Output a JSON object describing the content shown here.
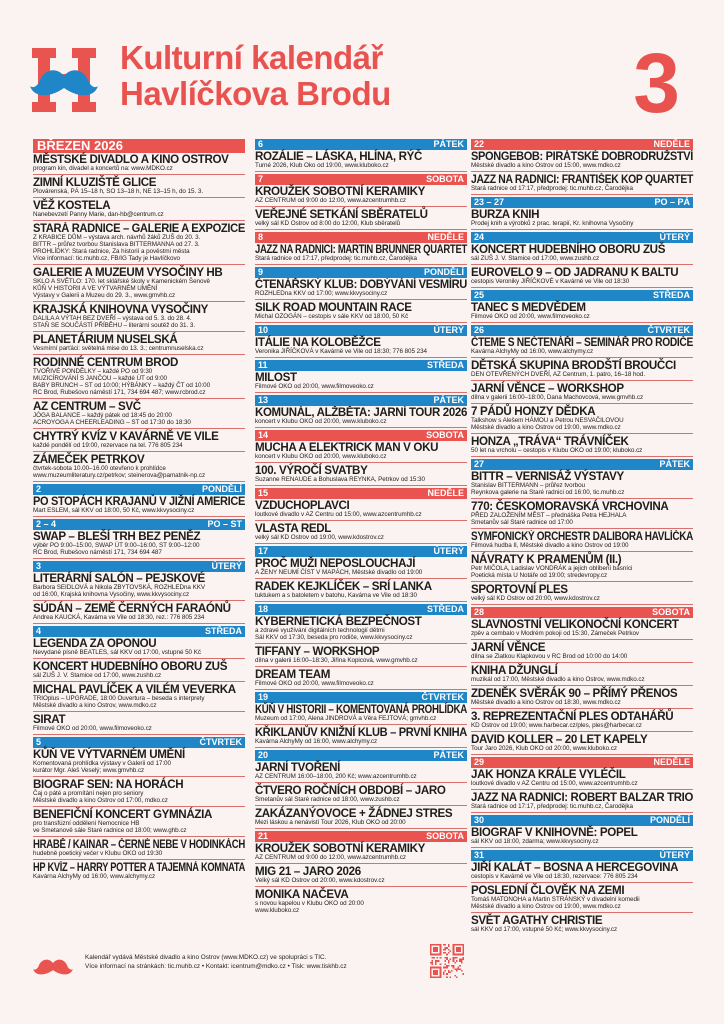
{
  "header": {
    "title_line1": "Kulturní kalendář",
    "title_line2": "Havlíčkova Brodu",
    "issue_number": "3",
    "logo_letter": "H"
  },
  "colors": {
    "red": "#ea5450",
    "blue": "#1f86c8"
  },
  "columns": [
    [
      {
        "type": "month",
        "label": "BŘEZEN 2026"
      },
      {
        "type": "event",
        "title": "MĚSTSKÉ DIVADLO A KINO OSTROV",
        "lines": [
          "program kin, divadel a koncertů na: www.MDKO.cz"
        ]
      },
      {
        "type": "event",
        "title": "ZIMNÍ KLUZIŠTĚ GLICE",
        "lines": [
          "Plovárenská, PÁ 15–18 h, SO 13–18 h, NE 13–15 h, do 15. 3."
        ]
      },
      {
        "type": "event",
        "title": "VĚŽ KOSTELA",
        "lines": [
          "Nanebevzetí Panny Marie, dan-hb@centrum.cz"
        ]
      },
      {
        "type": "event",
        "title": "STARÁ RADNICE – GALERIE A EXPOZICE",
        "lines": [
          "Z KRABICE DŮM – výstava arch. návrhů žáků ZUŠ do 20. 3.",
          "BITTR – průřez tvorbou Stanislava BITTERMANNA od 27. 3.",
          "PROHLÍDKY: Stará radnice, Za historií a pověstmi města",
          "Více informací: tic.muhb.cz, FB/IG Tady je Havlíčkovo"
        ]
      },
      {
        "type": "event",
        "title": "GALERIE A MUZEUM VYSOČINY HB",
        "lines": [
          "SKLO A SVĚTLO: 170. let sklářské školy v Kamenickém Šenově",
          "KŮŇ V HISTORII A VE VÝTVARNÉM UMĚNÍ",
          "Výstavy v Galerii a Muzeu do 29. 3., www.gmvhb.cz"
        ]
      },
      {
        "type": "event",
        "title": "KRAJSKÁ KNIHOVNA VYSOČINY",
        "lines": [
          "DALILA A VÝTAH BEZ DVEŘÍ – výstava od 5. 3. do 28. 4.",
          "STAŇ SE SOUČÁSTÍ PŘÍBĚHU – literární soutěž do 31. 3."
        ]
      },
      {
        "type": "event",
        "title": "PLANETÁRIUM NUSELSKÁ",
        "lines": [
          "Vesmírní parťáci: světelná mise do 13. 3.; centrumnuselska.cz"
        ]
      },
      {
        "type": "event",
        "title": "RODINNÉ CENTRUM BROD",
        "lines": [
          "TVOŘIVÉ PONDĚLKY – každé PO od 9:30",
          "MUZICÍROVÁNÍ S JANČOU – každé ÚT od 9:00",
          "BABY BRUNCH – ST od 10:00; HÝBÁNKY – každý ČT od 10:00",
          "RC Brod, Rubešovo náměstí 171, 734 694 487; www.rcbrod.cz"
        ]
      },
      {
        "type": "event",
        "title": "AZ CENTRUM – SVČ",
        "lines": [
          "JÓGA BALANCE – každý pátek od 18:45 do 20:00",
          "ACROYOGA A CHEERLEADING – ST od 17:30 do 18:30"
        ]
      },
      {
        "type": "event",
        "title": "CHYTRÝ KVÍZ V KAVÁRNĚ VE VILE",
        "lines": [
          "každé pondělí od 19:00, rezervace na tel. 776 805 234"
        ]
      },
      {
        "type": "event",
        "title": "ZÁMEČEK PETRKOV",
        "lines": [
          "čtvrtek-sobota 10.00–16.00 otevřeno k prohlídce",
          "www.muzeumliteratury.cz/petrkov; steinerova@pamatnik-np.cz"
        ]
      },
      {
        "type": "day",
        "num": "2",
        "name": "PONDĚLÍ",
        "color": "blue"
      },
      {
        "type": "event",
        "title": "PO STOPÁCH KRAJANŮ V JIŽNÍ AMERICE",
        "lines": [
          "Mart ESLEM, sál KKV od 18:00, 50 Kč, www.kkvysociny.cz"
        ]
      },
      {
        "type": "day",
        "num": "2 – 4",
        "name": "PO – ST",
        "color": "blue"
      },
      {
        "type": "event",
        "title": "SWAP – BLEŠÍ TRH BEZ PENĚZ",
        "lines": [
          "výběr PO 9:00–15:00, SWAP ÚT 9:00–16:00, ST 9:00–12:00",
          "RC Brod, Rubešovo náměstí 171, 734 694 487"
        ]
      },
      {
        "type": "day",
        "num": "3",
        "name": "ÚTERÝ",
        "color": "blue"
      },
      {
        "type": "event",
        "title": "LITERÁRNÍ SALÓN – PEJSKOVÉ",
        "lines": [
          "Barbora SEIDLOVÁ a Nikola ZBYTOVSKÁ, ROZHLEDna KKV",
          "od 16:00, Krajská knihovna Vysočiny, www.kkvysociny.cz"
        ]
      },
      {
        "type": "event",
        "title": "SÚDÁN – ZEMĚ ČERNÝCH FARAÓNŮ",
        "lines": [
          "Andrea KAUCKÁ, Kavárna ve Vile od 18:30, rez.: 776 805 234"
        ]
      },
      {
        "type": "day",
        "num": "4",
        "name": "STŘEDA",
        "color": "blue"
      },
      {
        "type": "event",
        "title": "LEGENDA ZA OPONOU",
        "lines": [
          "Nevydané písně BEATLES, sál KKV od 17:00, vstupné 50 Kč"
        ]
      },
      {
        "type": "event",
        "title": "KONCERT HUDEBNÍHO OBORU ZUŠ",
        "lines": [
          "sál ZUŠ J. V. Stamice od 17:00, www.zushb.cz"
        ]
      },
      {
        "type": "event",
        "title": "MICHAL PAVLÍČEK A VILÉM VEVERKA",
        "lines": [
          "TRIOplus – UPGRADE, 18:00 Ouvertura – beseda s interprety",
          "Městské divadlo a kino Ostrov, www.mdko.cz"
        ]
      },
      {
        "type": "event",
        "title": "SIRAT",
        "lines": [
          "Filmové OKO od 20:00, www.filmoveoko.cz"
        ]
      },
      {
        "type": "day",
        "num": "5",
        "name": "ČTVRTEK",
        "color": "blue"
      },
      {
        "type": "event",
        "title": "KŮŇ VE VÝTVARNÉM UMĚNÍ",
        "lines": [
          "Komentovaná prohlídka výstavy v Galerii od 17:00",
          "kurátor Mgr. Aleš Veselý; www.gmvhb.cz"
        ]
      },
      {
        "type": "event",
        "title": "BIOGRAF SEN: NA HORÁCH",
        "lines": [
          "Čaj o páté a promítání nejen pro seniory",
          "Městské divadlo a kino Ostrov od 17:00, mdko.cz"
        ]
      },
      {
        "type": "event",
        "title": "BENEFIČNÍ KONCERT GYMNÁZIA",
        "lines": [
          "pro transfúzní oddělení Nemocnice HB",
          "ve Smetanově sále Staré radnice od 18:00; www.ghb.cz"
        ]
      },
      {
        "type": "event",
        "title": "HRABĚ / KAINAR – ČERNÉ NEBE V HODINKÁCH",
        "lines": [
          "hudebně poetický večer v Klubu OKO od 19:30"
        ]
      },
      {
        "type": "event",
        "title": "HP KVÍZ – HARRY POTTER A TAJEMNÁ KOMNATA",
        "lines": [
          "Kavárna AlchyMy od 16:00, www.alchymy.cz"
        ]
      }
    ],
    [
      {
        "type": "day",
        "num": "6",
        "name": "PÁTEK",
        "color": "blue"
      },
      {
        "type": "event",
        "title": "ROZÁLIE – LÁSKA, HLÍNA, RÝČ",
        "lines": [
          "Turné 2026, Klub Oko od 19:00, www.kluboko.cz"
        ]
      },
      {
        "type": "day",
        "num": "7",
        "name": "SOBOTA",
        "color": "red"
      },
      {
        "type": "event",
        "title": "KROUŽEK SOBOTNÍ KERAMIKY",
        "lines": [
          "AZ CENTRUM od 9:00 do 12:00, www.azcentrumhb.cz"
        ]
      },
      {
        "type": "event",
        "title": "VEŘEJNÉ SETKÁNÍ SBĚRATELŮ",
        "lines": [
          "velký sál KD Ostrov od 8:00 do 12:00, Klub sběratelů"
        ]
      },
      {
        "type": "day",
        "num": "8",
        "name": "NEDĚLE",
        "color": "red"
      },
      {
        "type": "event",
        "title": "JAZZ NA RADNICI: MARTIN BRUNNER QUARTET",
        "lines": [
          "Stará radnice od 17:17, předprodej: tic.muhb.cz, Čarodějka"
        ]
      },
      {
        "type": "day",
        "num": "9",
        "name": "PONDĚLÍ",
        "color": "blue"
      },
      {
        "type": "event",
        "title": "ČTENÁŘSKÝ KLUB: DOBÝVÁNÍ VESMÍRU",
        "lines": [
          "ROZHLEDna KKV od 17:00; www.kkvysociny.cz"
        ]
      },
      {
        "type": "event",
        "title": "SILK ROAD MOUNTAIN RACE",
        "lines": [
          "Michal OZOGÁN – cestopis v sále KKV od 18:00, 50 Kč"
        ]
      },
      {
        "type": "day",
        "num": "10",
        "name": "ÚTERÝ",
        "color": "blue"
      },
      {
        "type": "event",
        "title": "ITÁLIE NA KOLOBĚŽCE",
        "lines": [
          "Veronika JIŘÍČKOVÁ v Kavárně ve Vile od 18:30; 776 805 234"
        ]
      },
      {
        "type": "day",
        "num": "11",
        "name": "STŘEDA",
        "color": "blue"
      },
      {
        "type": "event",
        "title": "MILOST",
        "lines": [
          "Filmové OKO od 20:00, www.filmoveoko.cz"
        ]
      },
      {
        "type": "day",
        "num": "13",
        "name": "PÁTEK",
        "color": "blue"
      },
      {
        "type": "event",
        "title": "KOMUNÁL, ALŽBĚTA: JARNÍ TOUR 2026",
        "lines": [
          "koncert v Klubu OKO od 20:00, www.kluboko.cz"
        ]
      },
      {
        "type": "day",
        "num": "14",
        "name": "SOBOTA",
        "color": "red"
      },
      {
        "type": "event",
        "title": "MUCHA A ELEKTRICK MAN V OKU",
        "lines": [
          "koncert v Klubu OKO od 20:00, www.kluboko.cz"
        ]
      },
      {
        "type": "event",
        "title": "100. VÝROČÍ SVATBY",
        "lines": [
          "Suzanne RENAUDE a Bohuslava REYNKA, Petrkov od 15:30"
        ]
      },
      {
        "type": "day",
        "num": "15",
        "name": "NEDĚLE",
        "color": "red"
      },
      {
        "type": "event",
        "title": "VZDUCHOPLAVCI",
        "lines": [
          "loutkové divadlo v AZ Centru od 15:00, www.azcentrumhb.cz"
        ]
      },
      {
        "type": "event",
        "title": "VLASTA REDL",
        "lines": [
          "velký sál KD Ostrov od 19:00, www.kdostrov.cz"
        ]
      },
      {
        "type": "day",
        "num": "17",
        "name": "ÚTERÝ",
        "color": "blue"
      },
      {
        "type": "event",
        "title": "PROČ MUŽI NEPOSLOUCHAJÍ",
        "lines": [
          "A ŽENY NEUMÍ ČÍST V MAPÁCH, Městské divadlo od 19:00"
        ]
      },
      {
        "type": "event",
        "title": "RADEK KEJKLÍČEK – SRÍ LANKA",
        "lines": [
          "tuktukem a s batoletem v batohu, Kavárna ve Vile od 18:30"
        ]
      },
      {
        "type": "day",
        "num": "18",
        "name": "STŘEDA",
        "color": "blue"
      },
      {
        "type": "event",
        "title": "KYBERNETICKÁ BEZPEČNOST",
        "lines": [
          "a zdravé využívání digitálních technologií dětmi",
          "Sál KKV od 17:30, beseda pro rodiče, www.kkvysociny.cz"
        ]
      },
      {
        "type": "event",
        "title": "TIFFANY – WORKSHOP",
        "lines": [
          "dílna v galerii 16:00–18:30, Jiřina Kopicová, www.gmvhb.cz"
        ]
      },
      {
        "type": "event",
        "title": "DREAM TEAM",
        "lines": [
          "Filmové OKO od 20:00, www.filmoveoko.cz"
        ]
      },
      {
        "type": "day",
        "num": "19",
        "name": "ČTVRTEK",
        "color": "blue"
      },
      {
        "type": "event",
        "title": "KŮŇ V HISTORII – KOMENTOVANÁ PROHLÍDKA",
        "lines": [
          "Muzeum od 17:00, Alena JINDROVÁ a Věra FEJTOVÁ; gmvhb.cz"
        ]
      },
      {
        "type": "event",
        "title": "KŘIKLANŮV KNIŽNÍ KLUB – PRVNÍ KNIHA",
        "lines": [
          "Kavárna AlchyMy od 16:00, www.alchymy.cz"
        ]
      },
      {
        "type": "day",
        "num": "20",
        "name": "PÁTEK",
        "color": "blue"
      },
      {
        "type": "event",
        "title": "JARNÍ TVOŘENÍ",
        "lines": [
          "AZ CENTRUM 16:00–18:00, 200 Kč; www.azcentrumhb.cz"
        ]
      },
      {
        "type": "event",
        "title": "ČTVERO ROČNÍCH OBDOBÍ – JARO",
        "lines": [
          "Smetanův sál Staré radnice od 18:00, www.zushb.cz"
        ]
      },
      {
        "type": "event",
        "title": "ZAKÁZANÝOVOCE + ŽÁDNEJ STRES",
        "lines": [
          "Mezi láskou a nenávistí Tour 2026, Klub OKO od 20:00"
        ]
      },
      {
        "type": "day",
        "num": "21",
        "name": "SOBOTA",
        "color": "red"
      },
      {
        "type": "event",
        "title": "KROUŽEK SOBOTNÍ KERAMIKY",
        "lines": [
          "AZ CENTRUM od 9:00 do 12:00, www.azcentrumhb.cz"
        ]
      },
      {
        "type": "event",
        "title": "MIG 21 – JARO 2026",
        "lines": [
          "Velký sál KD Ostrov od 20:00, www.kdostrov.cz"
        ]
      },
      {
        "type": "event",
        "title": "MONIKA NAČEVA",
        "lines": [
          "s novou kapelou v Klubu OKO od 20:00",
          "www.kluboko.cz"
        ]
      }
    ],
    [
      {
        "type": "day",
        "num": "22",
        "name": "NEDĚLE",
        "color": "red"
      },
      {
        "type": "event",
        "title": "SPONGEBOB: PIRÁTSKÉ DOBRODRUŽSTVÍ",
        "lines": [
          "Městské divadlo a kino Ostrov od 15:00, www.mdko.cz"
        ]
      },
      {
        "type": "event",
        "title": "JAZZ NA RADNICI: FRANTIŠEK KOP QUARTET",
        "lines": [
          "Stará radnice od 17:17, předprodej: tic.muhb.cz, Čarodějka"
        ]
      },
      {
        "type": "day",
        "num": "23 – 27",
        "name": "PO – PÁ",
        "color": "blue"
      },
      {
        "type": "event",
        "title": "BURZA KNIH",
        "lines": [
          "Prodej knih a výrobků z prac. terapií, Kr. knihovna Vysočiny"
        ]
      },
      {
        "type": "day",
        "num": "24",
        "name": "ÚTERÝ",
        "color": "blue"
      },
      {
        "type": "event",
        "title": "KONCERT HUDEBNÍHO OBORU ZUŠ",
        "lines": [
          "sál ZUŠ J. V. Stamice od 17:00, www.zushb.cz"
        ]
      },
      {
        "type": "event",
        "title": "EUROVELO 9 – OD JADRANU K BALTU",
        "lines": [
          "cestopis Veroniky JIŘÍČKOVÉ v Kavárně ve Vile od 18:30"
        ]
      },
      {
        "type": "day",
        "num": "25",
        "name": "STŘEDA",
        "color": "blue"
      },
      {
        "type": "event",
        "title": "TANEC S MEDVĚDEM",
        "lines": [
          "Filmové OKO od 20:00, www.filmoveoko.cz"
        ]
      },
      {
        "type": "day",
        "num": "26",
        "name": "ČTVRTEK",
        "color": "blue"
      },
      {
        "type": "event",
        "title": "ČTEME S NEČTENÁŘI – SEMINÁŘ PRO RODIČE",
        "lines": [
          "Kavárna AlchyMy od 16:00, www.alchymy.cz"
        ]
      },
      {
        "type": "event",
        "title": "DĚTSKÁ SKUPINA BRODŠTÍ BROUČCI",
        "lines": [
          "DEN OTEVŘENÝCH DVEŘÍ, AZ Centrum, 1. patro, 16–18 hod."
        ]
      },
      {
        "type": "event",
        "title": "JARNÍ VĚNCE – WORKSHOP",
        "lines": [
          "dílna v galerii 16:00–18:00, Dana Machovcová, www.gmvhb.cz"
        ]
      },
      {
        "type": "event",
        "title": "7 PÁDŮ HONZY DĚDKA",
        "lines": [
          "Talkshow s Alešem HÁMOU a Petrou NESVAČILOVOU",
          "Městské divadlo a kino Ostrov od 19:00, www.mdko.cz"
        ]
      },
      {
        "type": "event",
        "title": "HONZA „TRÁVA“ TRÁVNÍČEK",
        "lines": [
          "50 let na vrcholu – cestopis v Klubu OKO od 19:00; kluboko.cz"
        ]
      },
      {
        "type": "day",
        "num": "27",
        "name": "PÁTEK",
        "color": "blue"
      },
      {
        "type": "event",
        "title": "BITTR – VERNISÁŽ VÝSTAVY",
        "lines": [
          "Stanislav BITTERMANN – průřez tvorbou",
          "Reynkova galerie na Staré radnici od 16:00, tic.muhb.cz"
        ]
      },
      {
        "type": "event",
        "title": "770: ČESKOMORAVSKÁ VRCHOVINA",
        "lines": [
          "PŘED ZALOŽENÍM MĚST – přednáška Petra HEJHALA",
          "Smetanův sál Staré radnice od 17:00"
        ]
      },
      {
        "type": "event",
        "title": "SYMFONICKÝ ORCHESTR DALIBORA HAVLÍČKA",
        "lines": [
          "Filmová hudba II, Městské divadlo a kino Ostrov od 19:00"
        ]
      },
      {
        "type": "event",
        "title": "NÁVRATY K PRAMENŮM (II.)",
        "lines": [
          "Petr MIČOLA, Ladislav VONDRÁK a jejich oblíbení básníci",
          "Poetická místa U Notáře od 19:00; stredevropy.cz"
        ]
      },
      {
        "type": "event",
        "title": "SPORTOVNÍ PLES",
        "lines": [
          "velký sál KD Ostrov od 20:00, www.kdostrov.cz"
        ]
      },
      {
        "type": "day",
        "num": "28",
        "name": "SOBOTA",
        "color": "red"
      },
      {
        "type": "event",
        "title": "SLAVNOSTNÍ VELIKONOČNÍ KONCERT",
        "lines": [
          "zpěv a cembalo v Modrém pokoji od 15:30, Zámeček Petrkov"
        ]
      },
      {
        "type": "event",
        "title": "JARNÍ VĚNCE",
        "lines": [
          "dílna se Zlatkou Klapkovou v RC Brod od 10:00 do 14:00"
        ]
      },
      {
        "type": "event",
        "title": "KNIHA DŽUNGLÍ",
        "lines": [
          "muzikál od 17:00, Městské divadlo a kino Ostrov, www.mdko.cz"
        ]
      },
      {
        "type": "event",
        "title": "ZDENĚK SVĚRÁK 90 – PŘÍMÝ PŘENOS",
        "lines": [
          "Městské divadlo a kino Ostrov od 18:30, www.mdko.cz"
        ]
      },
      {
        "type": "event",
        "title": "3. REPREZENTAČNÍ PLES ODTAHÁŘŮ",
        "lines": [
          "KD Ostrov od 19:00; www.harbecar.cz/ples, ples@harbecar.cz"
        ]
      },
      {
        "type": "event",
        "title": "DAVID KOLLER – 20 LET KAPELY",
        "lines": [
          "Tour Jaro 2026, Klub OKO od 20:00, www.kluboko.cz"
        ]
      },
      {
        "type": "day",
        "num": "29",
        "name": "NEDĚLE",
        "color": "red"
      },
      {
        "type": "event",
        "title": "JAK HONZA KRÁLE VYLÉČIL",
        "lines": [
          "loutkové divadlo v AZ Centru od 15:00, www.azcentrumhb.cz"
        ]
      },
      {
        "type": "event",
        "title": "JAZZ NA RADNICI: ROBERT BALZAR TRIO",
        "lines": [
          "Stará radnice od 17:17, předprodej: tic.muhb.cz, Čarodějka"
        ]
      },
      {
        "type": "day",
        "num": "30",
        "name": "PONDĚLÍ",
        "color": "blue"
      },
      {
        "type": "event",
        "title": "BIOGRAF V KNIHOVNĚ: POPEL",
        "lines": [
          "sál KKV od 18:00, zdarma; www.kkvysociny.cz"
        ]
      },
      {
        "type": "day",
        "num": "31",
        "name": "ÚTERÝ",
        "color": "blue"
      },
      {
        "type": "event",
        "title": "JIŘÍ KALÁT – BOSNA A HERCEGOVINA",
        "lines": [
          "cestopis v Kavárně ve Vile od 18:30, rezervace: 776 805 234"
        ]
      },
      {
        "type": "event",
        "title": "POSLEDNÍ ČLOVĚK NA ZEMI",
        "lines": [
          "Tomáš MATONOHA a Martin STRÁNSKÝ v divadelní komedii",
          "Městské divadlo a kino Ostrov od 19:00, www.mdko.cz"
        ]
      },
      {
        "type": "event",
        "title": "SVĚT AGATHY CHRISTIE",
        "lines": [
          "sál KKV od 17:00, vstupné 50 Kč; www.kkvysociny.cz"
        ]
      }
    ]
  ],
  "footer": {
    "line1": "Kalendář vydává Městské divadlo a kino Ostrov (www.MDKO.cz) ve spolupráci s TIC.",
    "line2": "Více informací na stránkách: tic.muhb.cz  •  Kontakt: icentrum@mdko.cz  •  Tisk: www.tiskhb.cz"
  }
}
